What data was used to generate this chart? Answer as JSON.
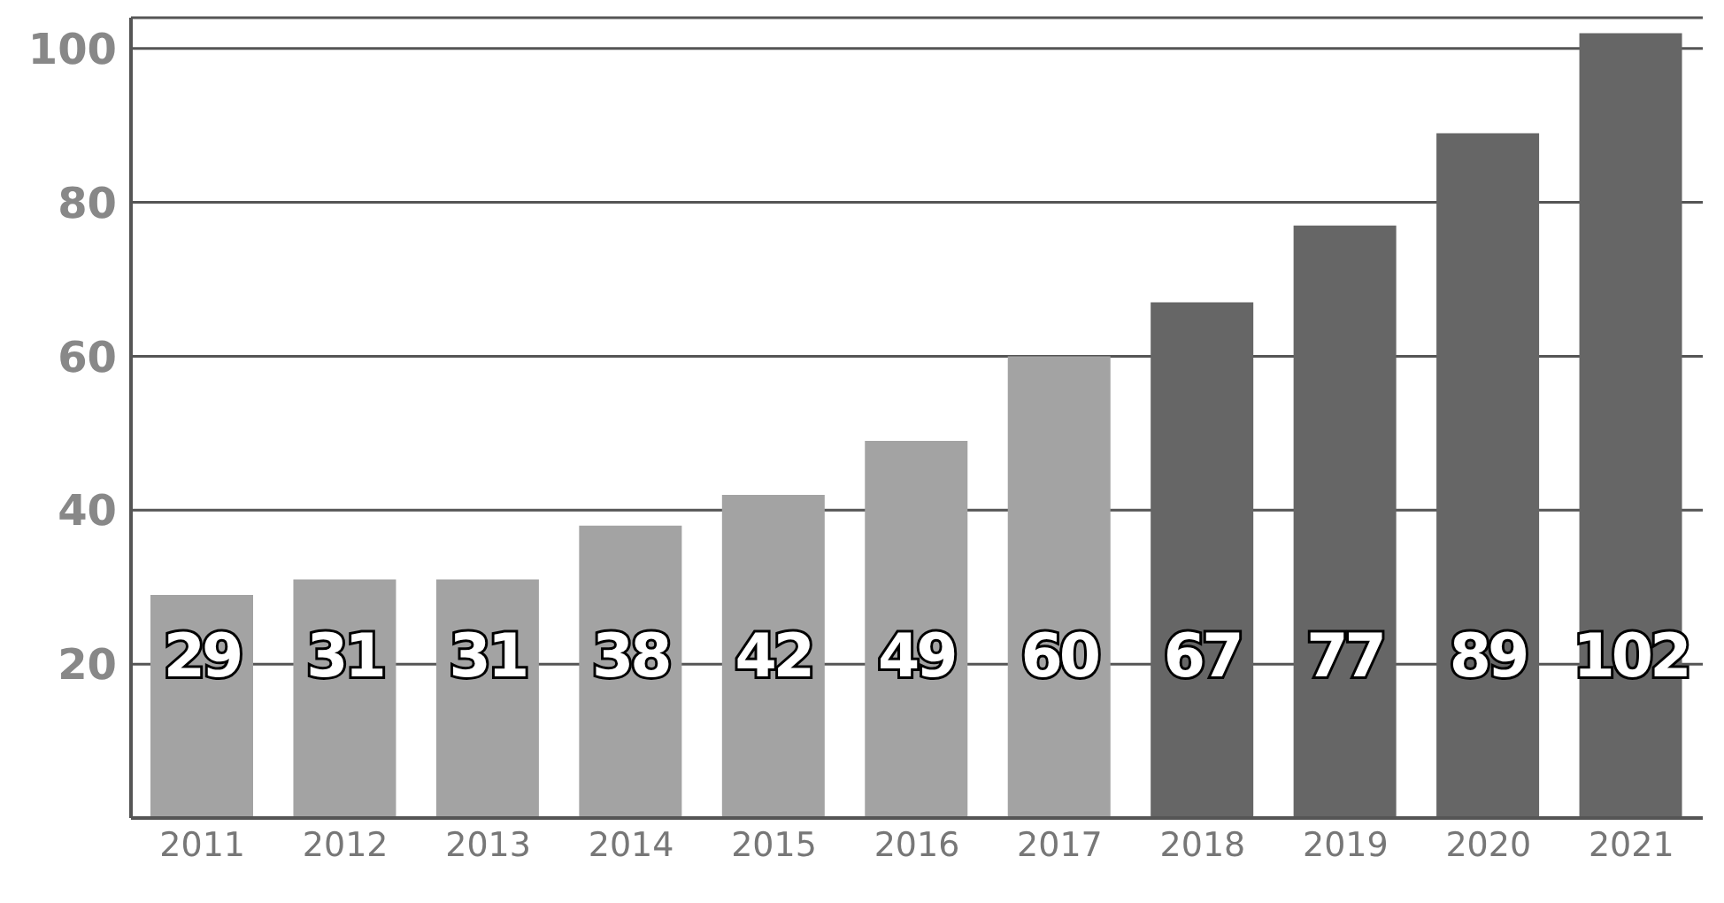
{
  "chart_data": {
    "type": "bar",
    "categories": [
      "2011",
      "2012",
      "2013",
      "2014",
      "2015",
      "2016",
      "2017",
      "2018",
      "2019",
      "2020",
      "2021"
    ],
    "values": [
      29,
      31,
      31,
      38,
      42,
      49,
      60,
      67,
      77,
      89,
      102
    ],
    "colors": [
      "#a3a3a3",
      "#a3a3a3",
      "#a3a3a3",
      "#a3a3a3",
      "#a3a3a3",
      "#a3a3a3",
      "#a3a3a3",
      "#666666",
      "#666666",
      "#666666",
      "#666666"
    ],
    "ylim": [
      0,
      104
    ],
    "yticks": [
      20,
      40,
      60,
      80,
      100
    ],
    "grid": "y",
    "data_labels": true
  }
}
